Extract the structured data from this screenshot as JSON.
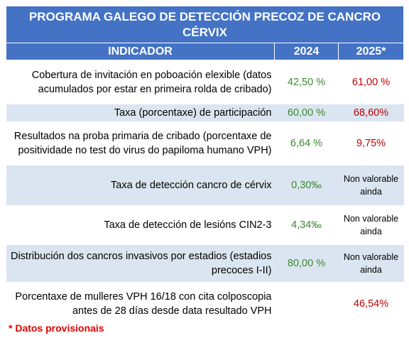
{
  "title": "PROGRAMA GALEGO DE DETECCIÓN PRECOZ DE CANCRO CÉRVIX",
  "headers": {
    "indicator": "INDICADOR",
    "y2024": "2024",
    "y2025": "2025*"
  },
  "rows": [
    {
      "indicator": "Cobertura de invitación en poboación elexible (datos acumulados por estar en primeira rolda de cribado)",
      "v2024": "42,50 %",
      "v2025": "61,00 %"
    },
    {
      "indicator": "Taxa (porcentaxe) de participación",
      "v2024": "60,00 %",
      "v2025": "68,60%"
    },
    {
      "indicator": "Resultados na proba primaria de cribado (porcentaxe de positividade no test do virus do papiloma humano VPH)",
      "v2024": "6,64 %",
      "v2025": "9,75%"
    },
    {
      "indicator": "Taxa de detección cancro de cérvix",
      "v2024": "0,30‰",
      "v2025": "Non valorable ainda"
    },
    {
      "indicator": "Taxa de detección de lesións CIN2-3",
      "v2024": "4,34‰",
      "v2025": "Non valorable ainda"
    },
    {
      "indicator": "Distribución dos cancros invasivos por estadios (estadios precoces I-II)",
      "v2024": "80,00 %",
      "v2025": "Non valorable ainda"
    },
    {
      "indicator": "Porcentaxe de mulleres VPH 16/18 con cita colposcopia antes de 28 días desde data resultado VPH",
      "v2024": "",
      "v2025": "46,54%"
    }
  ],
  "footnote": "* Datos provisionais",
  "colors": {
    "header_bg": "#4472c4",
    "band_bg": "#dbe5f1",
    "value_2024": "#3a8a2c",
    "value_2025": "#c00000",
    "footnote": "#e00000"
  }
}
